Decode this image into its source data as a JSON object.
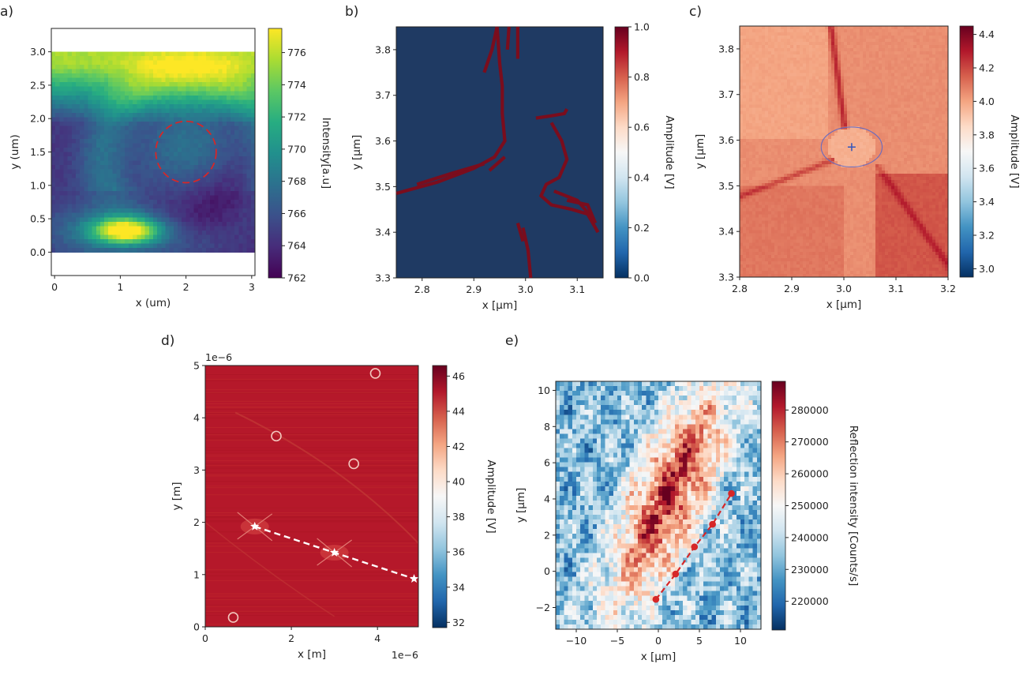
{
  "chart_data": [
    {
      "id": "a",
      "type": "heatmap",
      "panel_label": "a)",
      "xlabel": "x (um)",
      "ylabel": "y (um)",
      "xlim": [
        -0.05,
        3.05
      ],
      "ylim": [
        -0.35,
        3.35
      ],
      "xticks": [
        "0",
        "1",
        "2",
        "3"
      ],
      "yticks": [
        "0.0",
        "0.5",
        "1.0",
        "1.5",
        "2.0",
        "2.5",
        "3.0"
      ],
      "colormap": "viridis",
      "colorbar": {
        "label": "Intensity[a.u]",
        "min": 762,
        "max": 777.5,
        "ticks": [
          "762",
          "764",
          "766",
          "768",
          "770",
          "772",
          "774",
          "776"
        ]
      },
      "annotations": [
        {
          "shape": "dashed-circle",
          "cx": 2.0,
          "cy": 1.5,
          "r": 0.46,
          "color": "#d62728"
        }
      ]
    },
    {
      "id": "b",
      "type": "heatmap",
      "panel_label": "b)",
      "xlabel": "x [μm]",
      "ylabel": "y [μm]",
      "xlim": [
        2.75,
        3.15
      ],
      "ylim": [
        3.3,
        3.85
      ],
      "xticks": [
        "2.8",
        "2.9",
        "3.0",
        "3.1"
      ],
      "yticks": [
        "3.3",
        "3.4",
        "3.5",
        "3.6",
        "3.7",
        "3.8"
      ],
      "colormap": "RdBu_r",
      "colorbar": {
        "label": "Amplitude [V]",
        "min": 0.0,
        "max": 1.0,
        "ticks": [
          "0.0",
          "0.2",
          "0.4",
          "0.6",
          "0.8",
          "1.0"
        ]
      }
    },
    {
      "id": "c",
      "type": "heatmap",
      "panel_label": "c)",
      "xlabel": "x [μm]",
      "ylabel": "y [μm]",
      "xlim": [
        2.8,
        3.2
      ],
      "ylim": [
        3.3,
        3.85
      ],
      "xticks": [
        "2.8",
        "2.9",
        "3.0",
        "3.1",
        "3.2"
      ],
      "yticks": [
        "3.3",
        "3.4",
        "3.5",
        "3.6",
        "3.7",
        "3.8"
      ],
      "colormap": "RdBu_r",
      "colorbar": {
        "label": "Amplitude [V]",
        "min": 2.95,
        "max": 4.45,
        "ticks": [
          "3.0",
          "3.2",
          "3.4",
          "3.6",
          "3.8",
          "4.0",
          "4.2",
          "4.4"
        ]
      },
      "annotations": [
        {
          "shape": "circle",
          "cx": 3.015,
          "cy": 3.585,
          "r": 0.045,
          "color": "#5566cc"
        },
        {
          "shape": "plus",
          "x": 3.015,
          "y": 3.585,
          "color": "#3355bb"
        }
      ]
    },
    {
      "id": "d",
      "type": "heatmap",
      "panel_label": "d)",
      "xlabel": "x [m]",
      "ylabel": "y [m]",
      "xlim": [
        0,
        4.95
      ],
      "ylim": [
        0,
        5.0
      ],
      "x_offset_text": "1e−6",
      "y_offset_text": "1e−6",
      "xticks": [
        "0",
        "2",
        "4"
      ],
      "yticks": [
        "0",
        "1",
        "2",
        "3",
        "4",
        "5"
      ],
      "colormap": "RdBu_r",
      "colorbar": {
        "label": "Amplitude [V]",
        "min": 31.7,
        "max": 46.6,
        "ticks": [
          "32",
          "34",
          "36",
          "38",
          "40",
          "42",
          "44",
          "46"
        ]
      },
      "series": [
        {
          "name": "path",
          "style": "white-dashed-stars",
          "x": [
            1.15,
            3.0,
            4.85
          ],
          "y": [
            1.92,
            1.42,
            0.92
          ]
        }
      ]
    },
    {
      "id": "e",
      "type": "heatmap",
      "panel_label": "e)",
      "xlabel": "x [μm]",
      "ylabel": "y [μm]",
      "xlim": [
        -12.5,
        12.5
      ],
      "ylim": [
        -3.2,
        10.5
      ],
      "xticks": [
        "−10",
        "−5",
        "0",
        "5",
        "10"
      ],
      "yticks": [
        "−2",
        "0",
        "2",
        "4",
        "6",
        "8",
        "10"
      ],
      "colormap": "RdBu_r",
      "colorbar": {
        "label": "Reflection intensity [Counts/s]",
        "min": 211000,
        "max": 289000,
        "ticks": [
          "220000",
          "230000",
          "240000",
          "250000",
          "260000",
          "270000",
          "280000"
        ]
      },
      "series": [
        {
          "name": "path",
          "style": "red-dashed-dots",
          "x": [
            -0.3,
            2.1,
            4.4,
            6.6,
            8.9
          ],
          "y": [
            -1.55,
            -0.15,
            1.35,
            2.6,
            4.3
          ]
        }
      ]
    }
  ]
}
